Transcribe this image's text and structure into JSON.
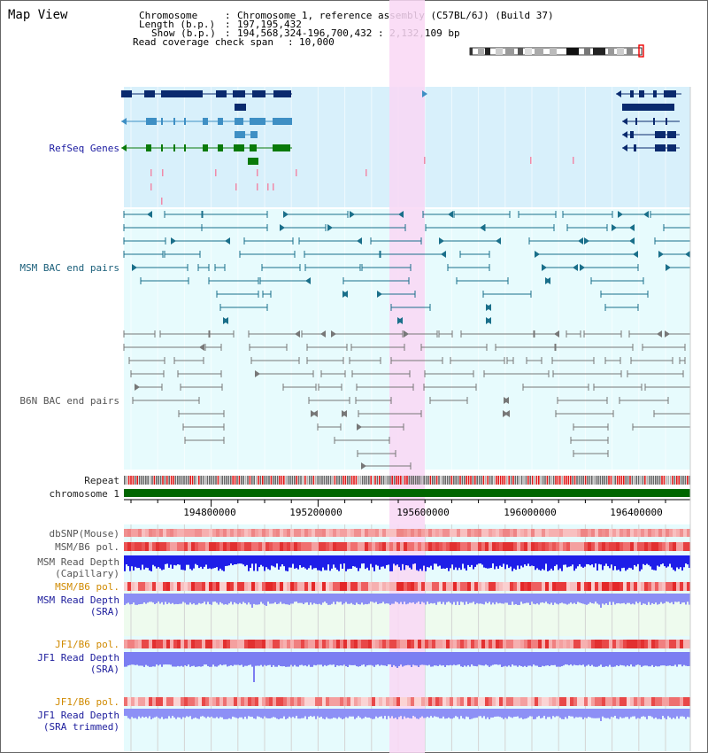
{
  "page_title": "Map View",
  "header": {
    "chromosome_key": "Chromosome",
    "chromosome_val": "Chromosome 1, reference assembly (C57BL/6J) (Build 37)",
    "length_key": "Length (b.p.)",
    "length_val": "197,195,432",
    "show_key": "Show (b.p.)",
    "show_val": "194,568,324-196,700,432 : 2,132,109 bp",
    "coverage_key": "Read coverage check span",
    "coverage_val": "10,000"
  },
  "tracks": {
    "refseq": "RefSeq Genes",
    "msm_bac": "MSM BAC end pairs",
    "b6n_bac": "B6N BAC end pairs",
    "repeat": "Repeat",
    "chromosome": "chromosome 1",
    "dbsnp": "dbSNP(Mouse)",
    "msm_pol1": "MSM/B6 pol.",
    "msm_depth_cap_1": "MSM Read Depth",
    "msm_depth_cap_2": "(Capillary)",
    "msm_pol2": "MSM/B6 pol.",
    "msm_depth_sra_1": "MSM Read Depth",
    "msm_depth_sra_2": "(SRA)",
    "jf1_pol1": "JF1/B6 pol.",
    "jf1_depth_1": "JF1 Read Depth",
    "jf1_depth_2": "(SRA)",
    "jf1_pol2": "JF1/B6 pol.",
    "jf1_trim_1": "JF1 Read Depth",
    "jf1_trim_2": "(SRA trimmed)"
  },
  "axis_ticks": [
    "194800000",
    "195200000",
    "195600000",
    "196000000",
    "196400000"
  ],
  "colors": {
    "highlight": "#f9d7f4",
    "refseq_bg": "#d8f0fb",
    "bac_bg": "#e7fbfd",
    "msm_sra_bg": "#eefbee",
    "jf1_bg": "#e6fbfd",
    "chromosome_bar": "#006600",
    "refseq_navy": "#0a2a6e",
    "refseq_mid": "#3e8fc4",
    "refseq_green": "#0a7a0a",
    "bac_teal": "#1a6f8a",
    "bac_grey": "#777777",
    "depth_blue": "#1e1ee8",
    "depth_light": "#7b7ef2",
    "pol_red": "#e62a2a"
  }
}
